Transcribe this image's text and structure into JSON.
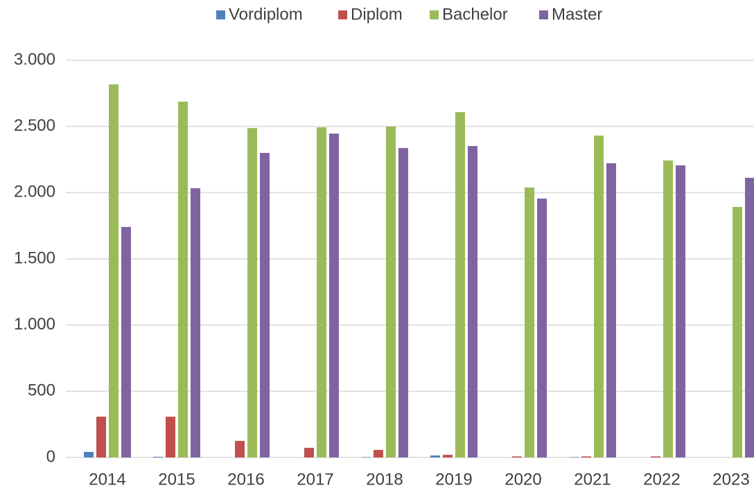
{
  "chart_data": {
    "type": "bar",
    "categories": [
      "2014",
      "2015",
      "2016",
      "2017",
      "2018",
      "2019",
      "2020",
      "2021",
      "2022",
      "2023"
    ],
    "series": [
      {
        "name": "Vordiplom",
        "color": "#4f81bd",
        "values": [
          42,
          5,
          0,
          0,
          3,
          15,
          0,
          3,
          0,
          0
        ]
      },
      {
        "name": "Diplom",
        "color": "#c0504d",
        "values": [
          308,
          308,
          125,
          73,
          57,
          20,
          8,
          8,
          8,
          0
        ]
      },
      {
        "name": "Bachelor",
        "color": "#9bbb59",
        "values": [
          2818,
          2687,
          2488,
          2493,
          2499,
          2608,
          2039,
          2431,
          2243,
          1892
        ]
      },
      {
        "name": "Master",
        "color": "#8064a2",
        "values": [
          1741,
          2033,
          2300,
          2446,
          2337,
          2352,
          1955,
          2222,
          2206,
          2112
        ]
      }
    ],
    "ylim": [
      0,
      3000
    ],
    "yticks": [
      0,
      500,
      {
        "value": 1000,
        "label": "1.000"
      },
      {
        "value": 1500,
        "label": "1.500"
      },
      {
        "value": 2000,
        "label": "2.000"
      },
      {
        "value": 2500,
        "label": "2.500"
      },
      {
        "value": 3000,
        "label": "3.000"
      }
    ],
    "grid": true,
    "legend": "top"
  }
}
